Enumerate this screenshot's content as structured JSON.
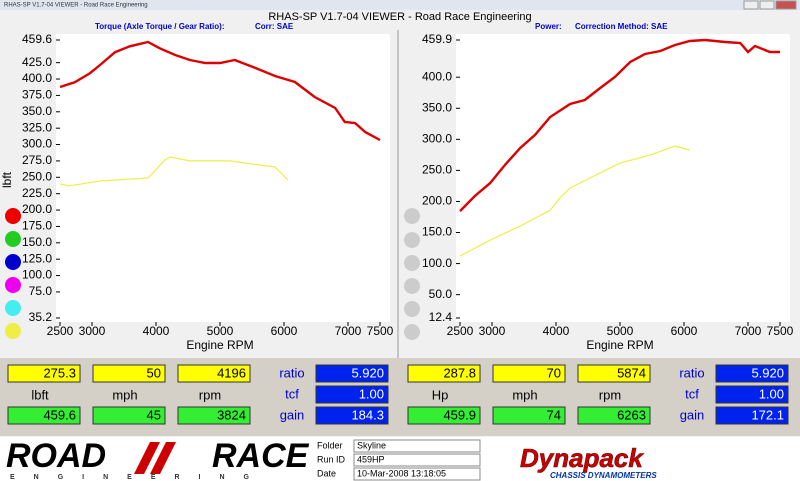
{
  "window": {
    "title_bar": "RHAS-SP V1.7-04  VIEWER - Road Race Engineering",
    "title": "RHAS-SP V1.7-04  VIEWER - Road Race Engineering"
  },
  "chart_data": [
    {
      "type": "line",
      "title": "Torque (Axle Torque / Gear Ratio):",
      "subtitle": "Corr: SAE",
      "ylabel": "lbft",
      "xlabel": "Engine RPM",
      "xlim": [
        2500,
        7500
      ],
      "xticks": [
        2500,
        3000,
        4000,
        5000,
        6000,
        7000,
        7500
      ],
      "ylim": [
        35.2,
        459.6
      ],
      "yticks": [
        459.6,
        {
          "value": 425,
          "label": "425.0"
        },
        {
          "value": 400,
          "label": "400.0"
        },
        {
          "value": 375,
          "label": "375.0"
        },
        {
          "value": 350,
          "label": "350.0"
        },
        {
          "value": 325,
          "label": "325.0"
        },
        {
          "value": 300,
          "label": "300.0"
        },
        {
          "value": 275,
          "label": "275.0"
        },
        {
          "value": 250,
          "label": "250.0"
        },
        {
          "value": 225,
          "label": "225.0"
        },
        {
          "value": 200,
          "label": "200.0"
        },
        {
          "value": 175,
          "label": "175.0"
        },
        {
          "value": 150,
          "label": "150.0"
        },
        {
          "value": 125,
          "label": "125.0"
        },
        {
          "value": 100,
          "label": "100.0"
        },
        {
          "value": 75,
          "label": "75.0"
        },
        35.2
      ],
      "series": [
        {
          "color": "#dd0000",
          "x": [
            2500,
            2730,
            2970,
            3125,
            3360,
            3590,
            3875,
            4060,
            4300,
            4530,
            4770,
            5000,
            5230,
            5550,
            5860,
            6170,
            6480,
            6800,
            6950,
            7110,
            7270,
            7500
          ],
          "values": [
            387.8,
            395,
            409,
            421.5,
            441,
            450,
            456.5,
            447,
            436.7,
            429,
            424.5,
            424.5,
            429,
            417,
            404.6,
            395.5,
            372.6,
            355.8,
            334.4,
            332.9,
            319,
            307
          ]
        },
        {
          "color": "#eeee44",
          "x": [
            2500,
            2650,
            3125,
            3875,
            4140,
            4220,
            4530,
            5160,
            5620,
            5860,
            6060
          ],
          "values": [
            239.8,
            237,
            244.3,
            249,
            276.4,
            281,
            275,
            275,
            268.8,
            265.7,
            246
          ]
        }
      ]
    },
    {
      "type": "line",
      "title": "Power:",
      "subtitle": "Correction Method: SAE",
      "ylabel": "Hp",
      "xlabel": "Engine RPM",
      "xlim": [
        2500,
        7500
      ],
      "xticks": [
        2500,
        3000,
        4000,
        5000,
        6000,
        7000,
        7500
      ],
      "ylim": [
        12.4,
        459.9
      ],
      "yticks": [
        459.9,
        {
          "value": 400,
          "label": "400.0"
        },
        {
          "value": 350,
          "label": "350.0"
        },
        {
          "value": 300,
          "label": "300.0"
        },
        {
          "value": 250,
          "label": "250.0"
        },
        {
          "value": 200,
          "label": "200.0"
        },
        {
          "value": 150,
          "label": "150.0"
        },
        {
          "value": 100,
          "label": "100.0"
        },
        {
          "value": 50,
          "label": "50.0"
        },
        12.4
      ],
      "series": [
        {
          "color": "#dd0000",
          "x": [
            2500,
            2730,
            2970,
            3200,
            3440,
            3670,
            3910,
            4220,
            4450,
            4690,
            4920,
            5160,
            5390,
            5630,
            5860,
            6090,
            6330,
            6640,
            6880,
            7000,
            7110,
            7340,
            7500
          ],
          "values": [
            184.5,
            208.7,
            229.6,
            258.6,
            286,
            306.9,
            335.9,
            356.8,
            363.3,
            382.6,
            400.3,
            424.5,
            437.4,
            442.2,
            451.8,
            458.3,
            459.9,
            456.7,
            455,
            440.6,
            450.2,
            440.6,
            440.6
          ]
        },
        {
          "color": "#eeee44",
          "x": [
            2500,
            2970,
            3440,
            3910,
            4060,
            4220,
            4530,
            5000,
            5470,
            5860,
            6090
          ],
          "values": [
            112.1,
            137.8,
            160.4,
            186,
            205.5,
            221.6,
            237.7,
            261.8,
            274.7,
            289.2,
            282.8
          ]
        }
      ]
    }
  ],
  "readouts": [
    {
      "top": [
        "275.3",
        "50",
        "4196"
      ],
      "units": [
        "lbft",
        "mph",
        "rpm"
      ],
      "bottom": [
        "459.6",
        "45",
        "3824"
      ],
      "ratio_label": "ratio",
      "ratio": "5.920",
      "tcf_label": "tcf",
      "tcf": "1.00",
      "gain_label": "gain",
      "gain": "184.3"
    },
    {
      "top": [
        "287.8",
        "70",
        "5874"
      ],
      "units": [
        "Hp",
        "mph",
        "rpm"
      ],
      "bottom": [
        "459.9",
        "74",
        "6263"
      ],
      "ratio_label": "ratio",
      "ratio": "5.920",
      "tcf_label": "tcf",
      "tcf": "1.00",
      "gain_label": "gain",
      "gain": "172.1"
    }
  ],
  "footer": {
    "logo_left": "ROAD",
    "logo_right": "RACE",
    "logo_sub": "ENGINEERING",
    "fields": [
      {
        "label": "Folder",
        "value": "Skyline"
      },
      {
        "label": "Run ID",
        "value": "459HP"
      },
      {
        "label": "Date",
        "value": "10-Mar-2008  13:18:05"
      }
    ],
    "brand": "Dynapack",
    "brand_sub": "CHASSIS DYNAMOMETERS"
  }
}
